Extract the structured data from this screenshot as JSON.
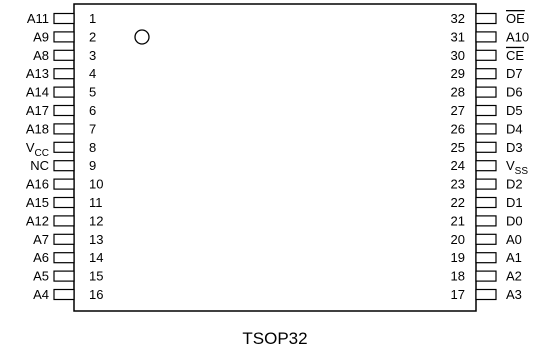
{
  "package": {
    "caption": "TSOP32"
  },
  "left_pins": [
    {
      "num": "1",
      "name": "A11"
    },
    {
      "num": "2",
      "name": "A9"
    },
    {
      "num": "3",
      "name": "A8"
    },
    {
      "num": "4",
      "name": "A13"
    },
    {
      "num": "5",
      "name": "A14"
    },
    {
      "num": "6",
      "name": "A17"
    },
    {
      "num": "7",
      "name": "A18"
    },
    {
      "num": "8",
      "name": "V",
      "sub": "CC"
    },
    {
      "num": "9",
      "name": "NC"
    },
    {
      "num": "10",
      "name": "A16"
    },
    {
      "num": "11",
      "name": "A15"
    },
    {
      "num": "12",
      "name": "A12"
    },
    {
      "num": "13",
      "name": "A7"
    },
    {
      "num": "14",
      "name": "A6"
    },
    {
      "num": "15",
      "name": "A5"
    },
    {
      "num": "16",
      "name": "A4"
    }
  ],
  "right_pins": [
    {
      "num": "32",
      "name": "OE",
      "overline": true
    },
    {
      "num": "31",
      "name": "A10"
    },
    {
      "num": "30",
      "name": "CE",
      "overline": true
    },
    {
      "num": "29",
      "name": "D7"
    },
    {
      "num": "28",
      "name": "D6"
    },
    {
      "num": "27",
      "name": "D5"
    },
    {
      "num": "26",
      "name": "D4"
    },
    {
      "num": "25",
      "name": "D3"
    },
    {
      "num": "24",
      "name": "V",
      "sub": "SS"
    },
    {
      "num": "23",
      "name": "D2"
    },
    {
      "num": "22",
      "name": "D1"
    },
    {
      "num": "21",
      "name": "D0"
    },
    {
      "num": "20",
      "name": "A0"
    },
    {
      "num": "19",
      "name": "A1"
    },
    {
      "num": "18",
      "name": "A2"
    },
    {
      "num": "17",
      "name": "A3"
    }
  ]
}
